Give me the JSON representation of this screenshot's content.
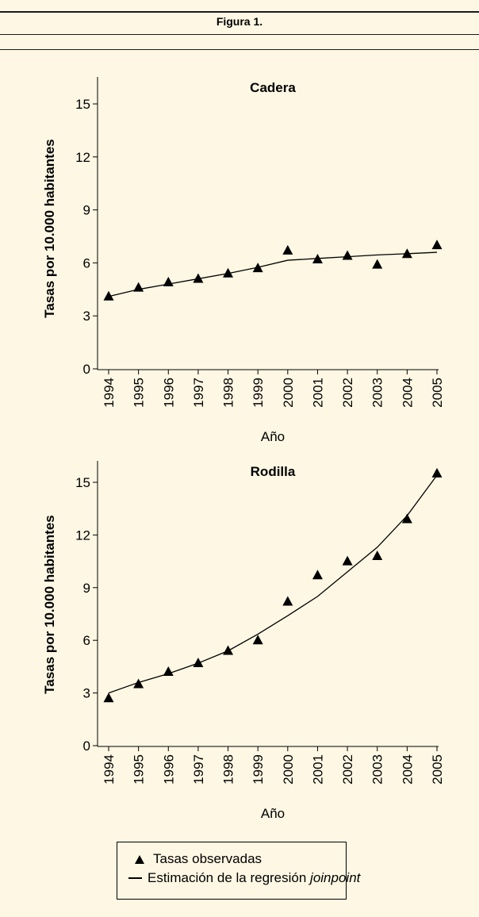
{
  "figure": {
    "title": "Figura 1."
  },
  "chart_data": [
    {
      "type": "line",
      "title": "Cadera",
      "xlabel": "Año",
      "ylabel": "Tasas por 10.000 habitantes",
      "ylim": [
        0,
        16
      ],
      "yticks": [
        0,
        3,
        6,
        9,
        12,
        15
      ],
      "categories": [
        "1994",
        "1995",
        "1996",
        "1997",
        "1998",
        "1999",
        "2000",
        "2001",
        "2002",
        "2003",
        "2004",
        "2005"
      ],
      "series": [
        {
          "name": "Tasas observadas",
          "marker": "triangle",
          "values": [
            4.1,
            4.6,
            4.9,
            5.1,
            5.4,
            5.7,
            6.7,
            6.2,
            6.4,
            5.9,
            6.5,
            7.0
          ]
        },
        {
          "name": "Estimación de la regresión joinpoint",
          "marker": "line",
          "values": [
            4.1,
            4.5,
            4.8,
            5.1,
            5.4,
            5.75,
            6.15,
            6.25,
            6.35,
            6.45,
            6.52,
            6.6
          ]
        }
      ]
    },
    {
      "type": "line",
      "title": "Rodilla",
      "xlabel": "Año",
      "ylabel": "Tasas por 10.000 habitantes",
      "ylim": [
        0,
        16
      ],
      "yticks": [
        0,
        3,
        6,
        9,
        12,
        15
      ],
      "categories": [
        "1994",
        "1995",
        "1996",
        "1997",
        "1998",
        "1999",
        "2000",
        "2001",
        "2002",
        "2003",
        "2004",
        "2005"
      ],
      "series": [
        {
          "name": "Tasas observadas",
          "marker": "triangle",
          "values": [
            2.7,
            3.5,
            4.2,
            4.7,
            5.4,
            6.0,
            8.2,
            9.7,
            10.5,
            10.8,
            12.9,
            15.5
          ]
        },
        {
          "name": "Estimación de la regresión joinpoint",
          "marker": "line",
          "values": [
            3.0,
            3.6,
            4.1,
            4.7,
            5.4,
            6.35,
            7.4,
            8.5,
            9.9,
            11.3,
            13.1,
            15.4
          ]
        }
      ]
    }
  ],
  "legend": {
    "observed_label": "Tasas observadas",
    "fit_label_prefix": "Estimación de la regresión ",
    "fit_label_italic": "joinpoint"
  }
}
